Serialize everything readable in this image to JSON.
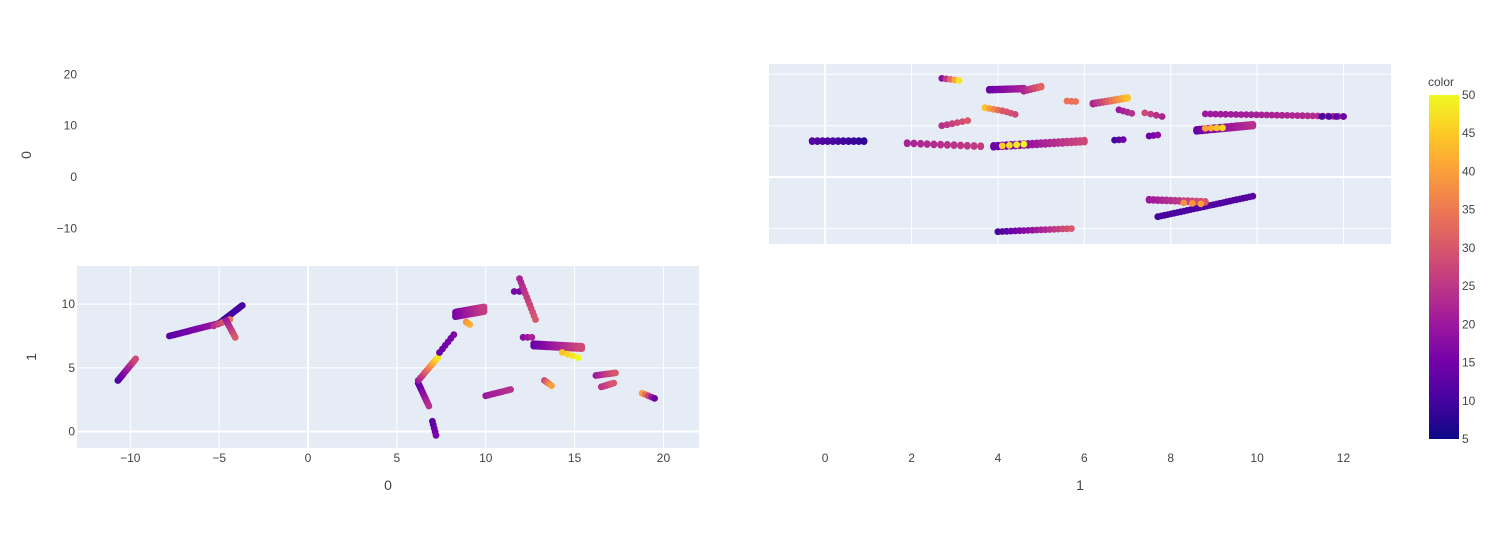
{
  "chart_data": {
    "type": "scatter",
    "title": "",
    "colorscale": [
      "#0d0887",
      "#46039f",
      "#7201a8",
      "#9c179e",
      "#bd3786",
      "#d8576b",
      "#ed7953",
      "#fb9f3a",
      "#fdca26",
      "#f0f921"
    ],
    "colorbar": {
      "title": "color",
      "range": [
        5,
        50
      ],
      "ticks": [
        "5",
        "10",
        "15",
        "20",
        "25",
        "30",
        "35",
        "40",
        "45",
        "50"
      ]
    },
    "panels": [
      {
        "id": "top-left",
        "xlabel": "",
        "ylabel": "0",
        "ylim": [
          -13,
          22
        ],
        "yticks": [
          "−10",
          "0",
          "10",
          "20"
        ],
        "points": []
      },
      {
        "id": "top-right",
        "xlabel": "",
        "ylabel": "",
        "xlim": [
          -1.3,
          13.1
        ],
        "ylim": [
          -13,
          22
        ],
        "xticks": [
          "0",
          "2",
          "4",
          "6",
          "8",
          "10",
          "12"
        ],
        "segments": [
          [
            -0.3,
            7.0,
            0.9,
            7.0,
            12,
            8,
            11,
            2
          ],
          [
            1.9,
            6.6,
            3.6,
            6.0,
            22,
            26,
            12,
            2
          ],
          [
            3.9,
            6.0,
            6.0,
            7.0,
            14,
            28,
            22,
            3
          ],
          [
            4.1,
            6.1,
            4.6,
            6.4,
            45,
            50,
            4,
            1
          ],
          [
            6.7,
            7.2,
            6.9,
            7.3,
            10,
            14,
            3,
            1
          ],
          [
            7.5,
            8.0,
            7.7,
            8.2,
            14,
            18,
            3,
            1
          ],
          [
            2.7,
            19.2,
            3.1,
            18.8,
            18,
            48,
            5,
            1
          ],
          [
            2.7,
            10.0,
            3.3,
            11.0,
            24,
            30,
            6,
            1
          ],
          [
            3.8,
            17.0,
            4.6,
            17.2,
            14,
            22,
            12,
            2
          ],
          [
            4.6,
            16.8,
            5.0,
            17.6,
            22,
            32,
            6,
            2
          ],
          [
            3.7,
            13.5,
            4.1,
            12.9,
            44,
            30,
            5,
            1
          ],
          [
            4.2,
            12.7,
            4.4,
            12.2,
            30,
            28,
            3,
            1
          ],
          [
            5.6,
            14.8,
            5.8,
            14.7,
            34,
            34,
            3,
            1
          ],
          [
            6.2,
            14.3,
            7.0,
            15.4,
            22,
            44,
            12,
            2
          ],
          [
            6.8,
            13.1,
            7.1,
            12.4,
            20,
            24,
            4,
            1
          ],
          [
            7.4,
            12.5,
            7.8,
            11.8,
            28,
            22,
            4,
            1
          ],
          [
            8.6,
            9.1,
            9.9,
            10.1,
            14,
            24,
            22,
            3
          ],
          [
            8.8,
            9.5,
            9.2,
            9.6,
            40,
            46,
            4,
            1
          ],
          [
            8.8,
            12.3,
            12.0,
            11.8,
            20,
            24,
            28,
            1
          ],
          [
            11.5,
            11.8,
            12.0,
            11.8,
            10,
            14,
            4,
            1
          ],
          [
            4.0,
            -10.6,
            5.7,
            -10.0,
            10,
            30,
            18,
            1
          ],
          [
            7.7,
            -7.7,
            9.9,
            -3.7,
            10,
            12,
            30,
            1
          ],
          [
            7.5,
            -4.4,
            8.8,
            -4.8,
            20,
            30,
            14,
            2
          ],
          [
            8.3,
            -5.0,
            8.7,
            -5.2,
            38,
            40,
            3,
            1
          ]
        ]
      },
      {
        "id": "bottom-left",
        "xlabel": "0",
        "ylabel": "1",
        "xlim": [
          -13,
          22
        ],
        "ylim": [
          -1.3,
          13
        ],
        "xticks": [
          "−10",
          "−5",
          "0",
          "5",
          "10",
          "15",
          "20"
        ],
        "yticks": [
          "0",
          "5",
          "10"
        ],
        "segments": [
          [
            -10.7,
            4.0,
            -9.7,
            5.7,
            10,
            28,
            18,
            1
          ],
          [
            -7.8,
            7.5,
            -5.0,
            8.5,
            12,
            20,
            22,
            1
          ],
          [
            -5.0,
            8.5,
            -3.7,
            9.9,
            10,
            10,
            16,
            1
          ],
          [
            -5.3,
            8.3,
            -4.4,
            8.8,
            24,
            34,
            5,
            1
          ],
          [
            -4.6,
            8.7,
            -4.1,
            7.4,
            20,
            30,
            8,
            1
          ],
          [
            6.2,
            3.8,
            6.8,
            2.0,
            12,
            24,
            12,
            1
          ],
          [
            6.2,
            4.0,
            7.3,
            5.8,
            20,
            48,
            10,
            1
          ],
          [
            7.0,
            0.8,
            7.2,
            -0.3,
            12,
            16,
            5,
            1
          ],
          [
            7.4,
            6.2,
            8.2,
            7.6,
            14,
            16,
            6,
            1
          ],
          [
            8.3,
            9.2,
            9.9,
            9.6,
            16,
            26,
            22,
            3
          ],
          [
            8.9,
            8.6,
            9.1,
            8.4,
            38,
            42,
            3,
            1
          ],
          [
            10.0,
            2.8,
            11.4,
            3.3,
            20,
            24,
            10,
            1
          ],
          [
            11.6,
            11.0,
            11.9,
            11.0,
            16,
            16,
            2,
            1
          ],
          [
            11.9,
            12.0,
            12.8,
            8.8,
            22,
            30,
            12,
            1
          ],
          [
            12.1,
            7.4,
            12.6,
            7.4,
            18,
            22,
            3,
            1
          ],
          [
            12.7,
            6.8,
            15.4,
            6.6,
            14,
            28,
            30,
            2
          ],
          [
            13.3,
            4.0,
            13.7,
            3.6,
            28,
            40,
            4,
            1
          ],
          [
            14.3,
            6.2,
            15.2,
            5.8,
            44,
            50,
            4,
            1
          ],
          [
            16.2,
            4.4,
            17.3,
            4.6,
            20,
            30,
            10,
            1
          ],
          [
            16.5,
            3.5,
            17.2,
            3.8,
            24,
            30,
            8,
            1
          ],
          [
            18.8,
            3.0,
            19.5,
            2.6,
            40,
            14,
            5,
            1
          ]
        ]
      },
      {
        "id": "bottom-right",
        "xlabel": "1",
        "ylabel": "",
        "xlim": [
          -1.3,
          13.1
        ],
        "xticks": [
          "0",
          "2",
          "4",
          "6",
          "8",
          "10",
          "12"
        ],
        "points": []
      }
    ]
  }
}
